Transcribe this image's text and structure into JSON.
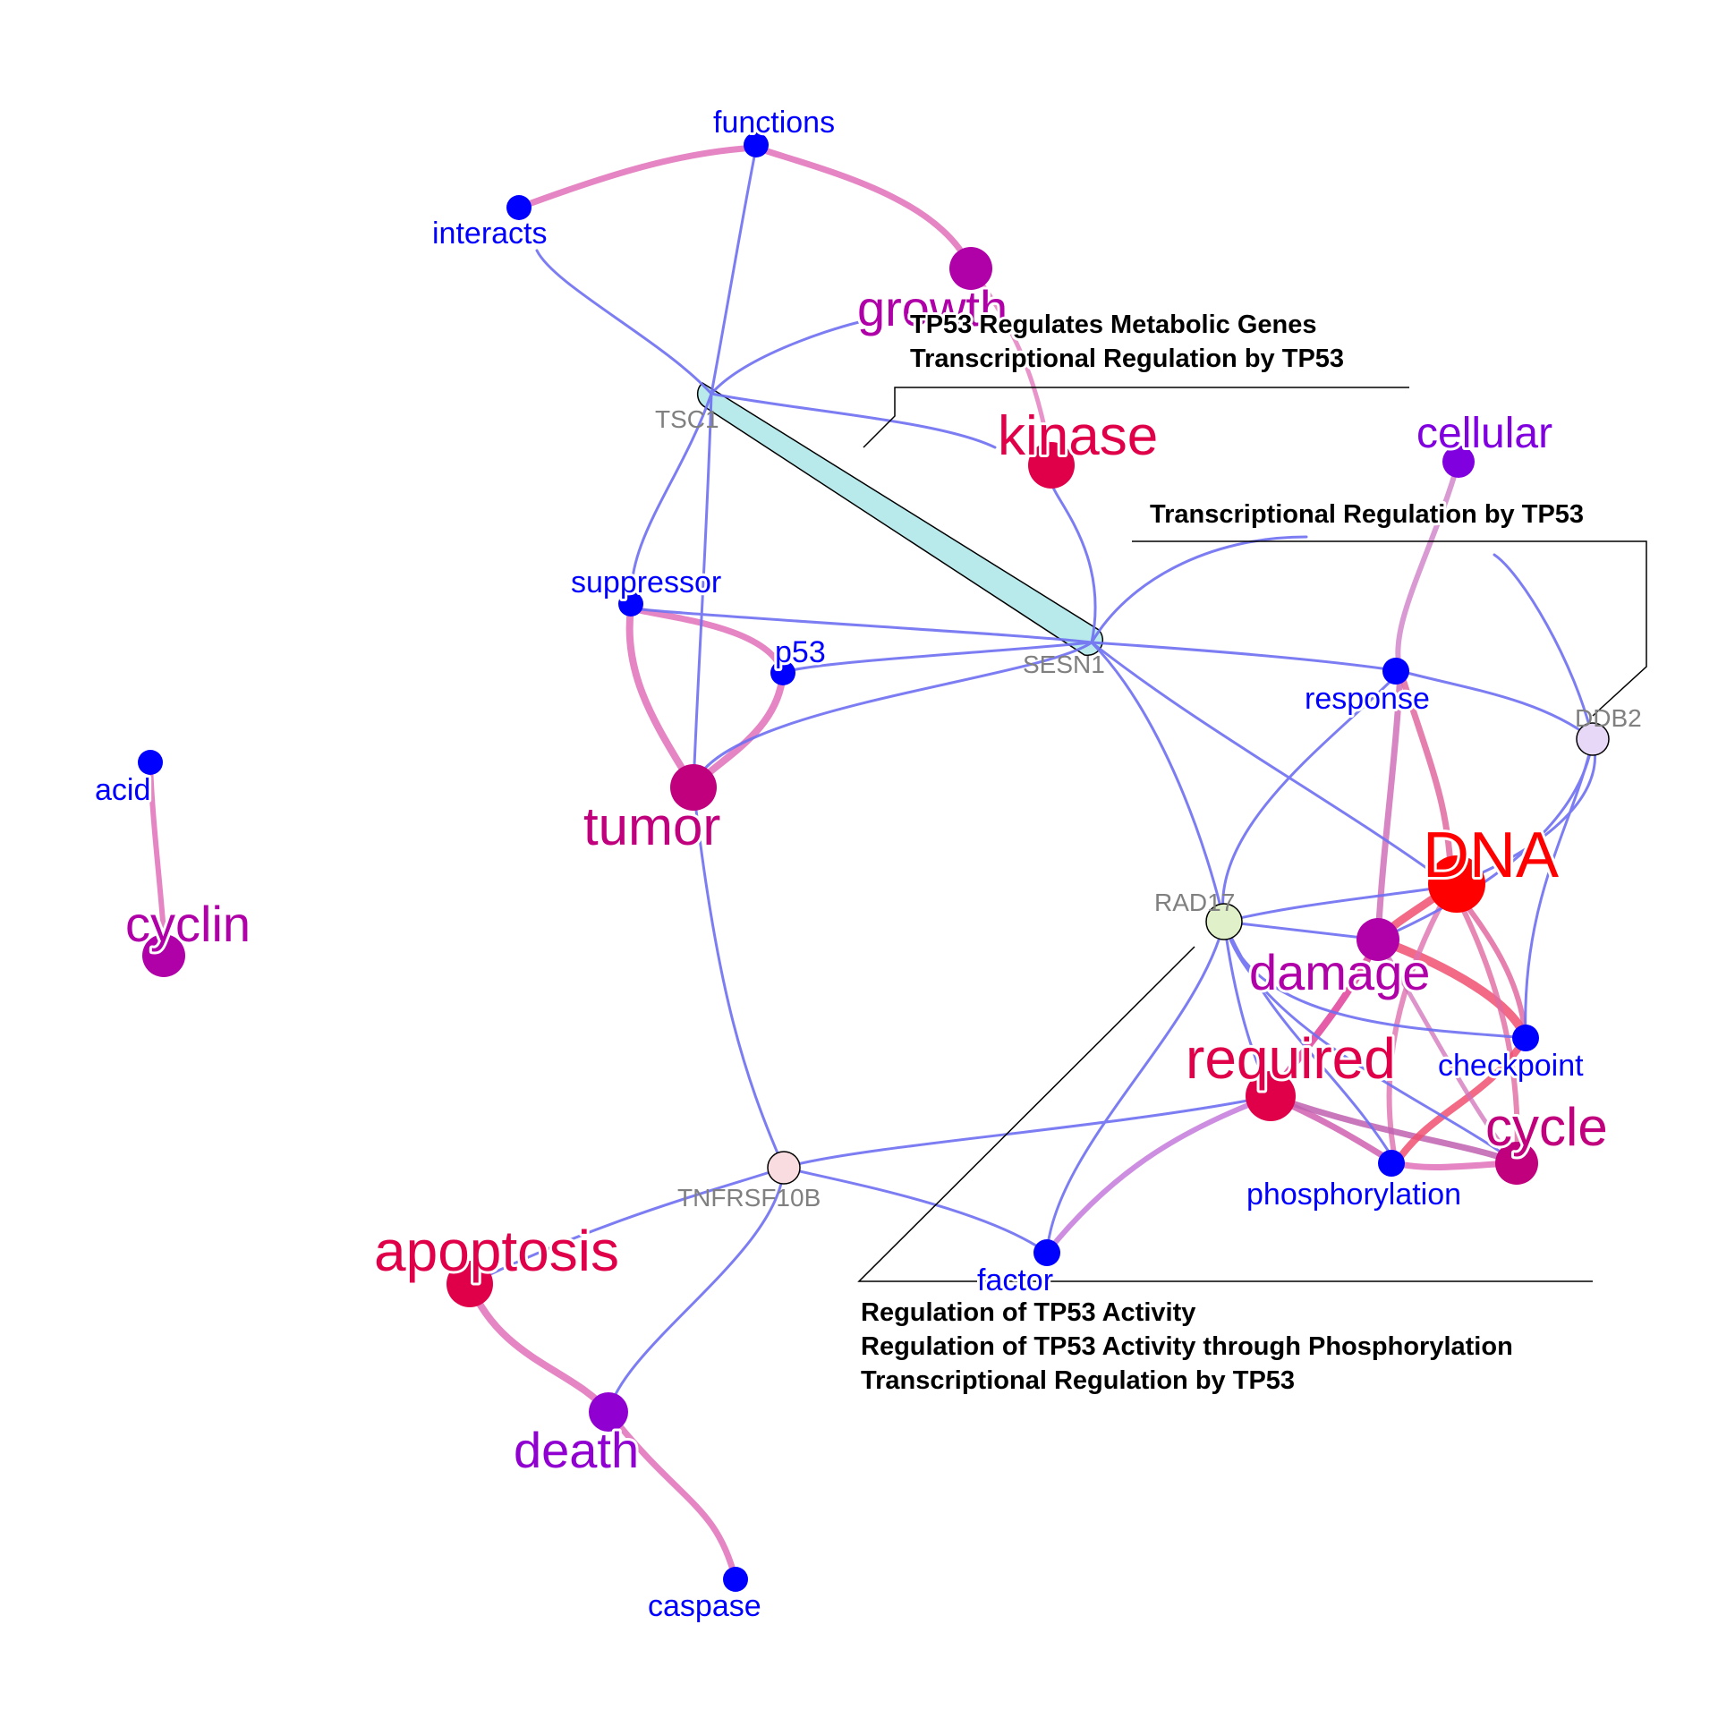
{
  "colors": {
    "blue": "#0000ff",
    "edge_blue": "#6f6ff2",
    "edge_pink": "#e070b8",
    "edge_red": "#f05070",
    "word_pink": "#c0007c",
    "word_magenta": "#b000a8",
    "word_crimson": "#e0004a",
    "word_red": "#ff0000",
    "word_violet": "#9000d0",
    "gene_text": "#808080",
    "highlight": "#b8eaec"
  },
  "words": {
    "functions": "functions",
    "interacts": "interacts",
    "growth": "growth",
    "kinase": "kinase",
    "cellular": "cellular",
    "suppressor": "suppressor",
    "p53": "p53",
    "response": "response",
    "tumor": "tumor",
    "acid": "acid",
    "cyclin": "cyclin",
    "dna": "DNA",
    "damage": "damage",
    "required": "required",
    "checkpoint": "checkpoint",
    "cycle": "cycle",
    "phosphorylation": "phosphorylation",
    "apoptosis": "apoptosis",
    "factor": "factor",
    "death": "death",
    "caspase": "caspase"
  },
  "genes": {
    "tsc1": "TSC1",
    "sesn1": "SESN1",
    "ddb2": "DDB2",
    "rad17": "RAD17",
    "tnfrsf10b": "TNFRSF10B"
  },
  "annotations": {
    "tsc1_sesn1": [
      "TP53 Regulates Metabolic Genes",
      "Transcriptional Regulation by TP53"
    ],
    "ddb2": [
      "Transcriptional Regulation by TP53"
    ],
    "rad17": [
      "Regulation of TP53 Activity",
      "Regulation of TP53 Activity through Phosphorylation",
      "Transcriptional Regulation by TP53"
    ]
  }
}
